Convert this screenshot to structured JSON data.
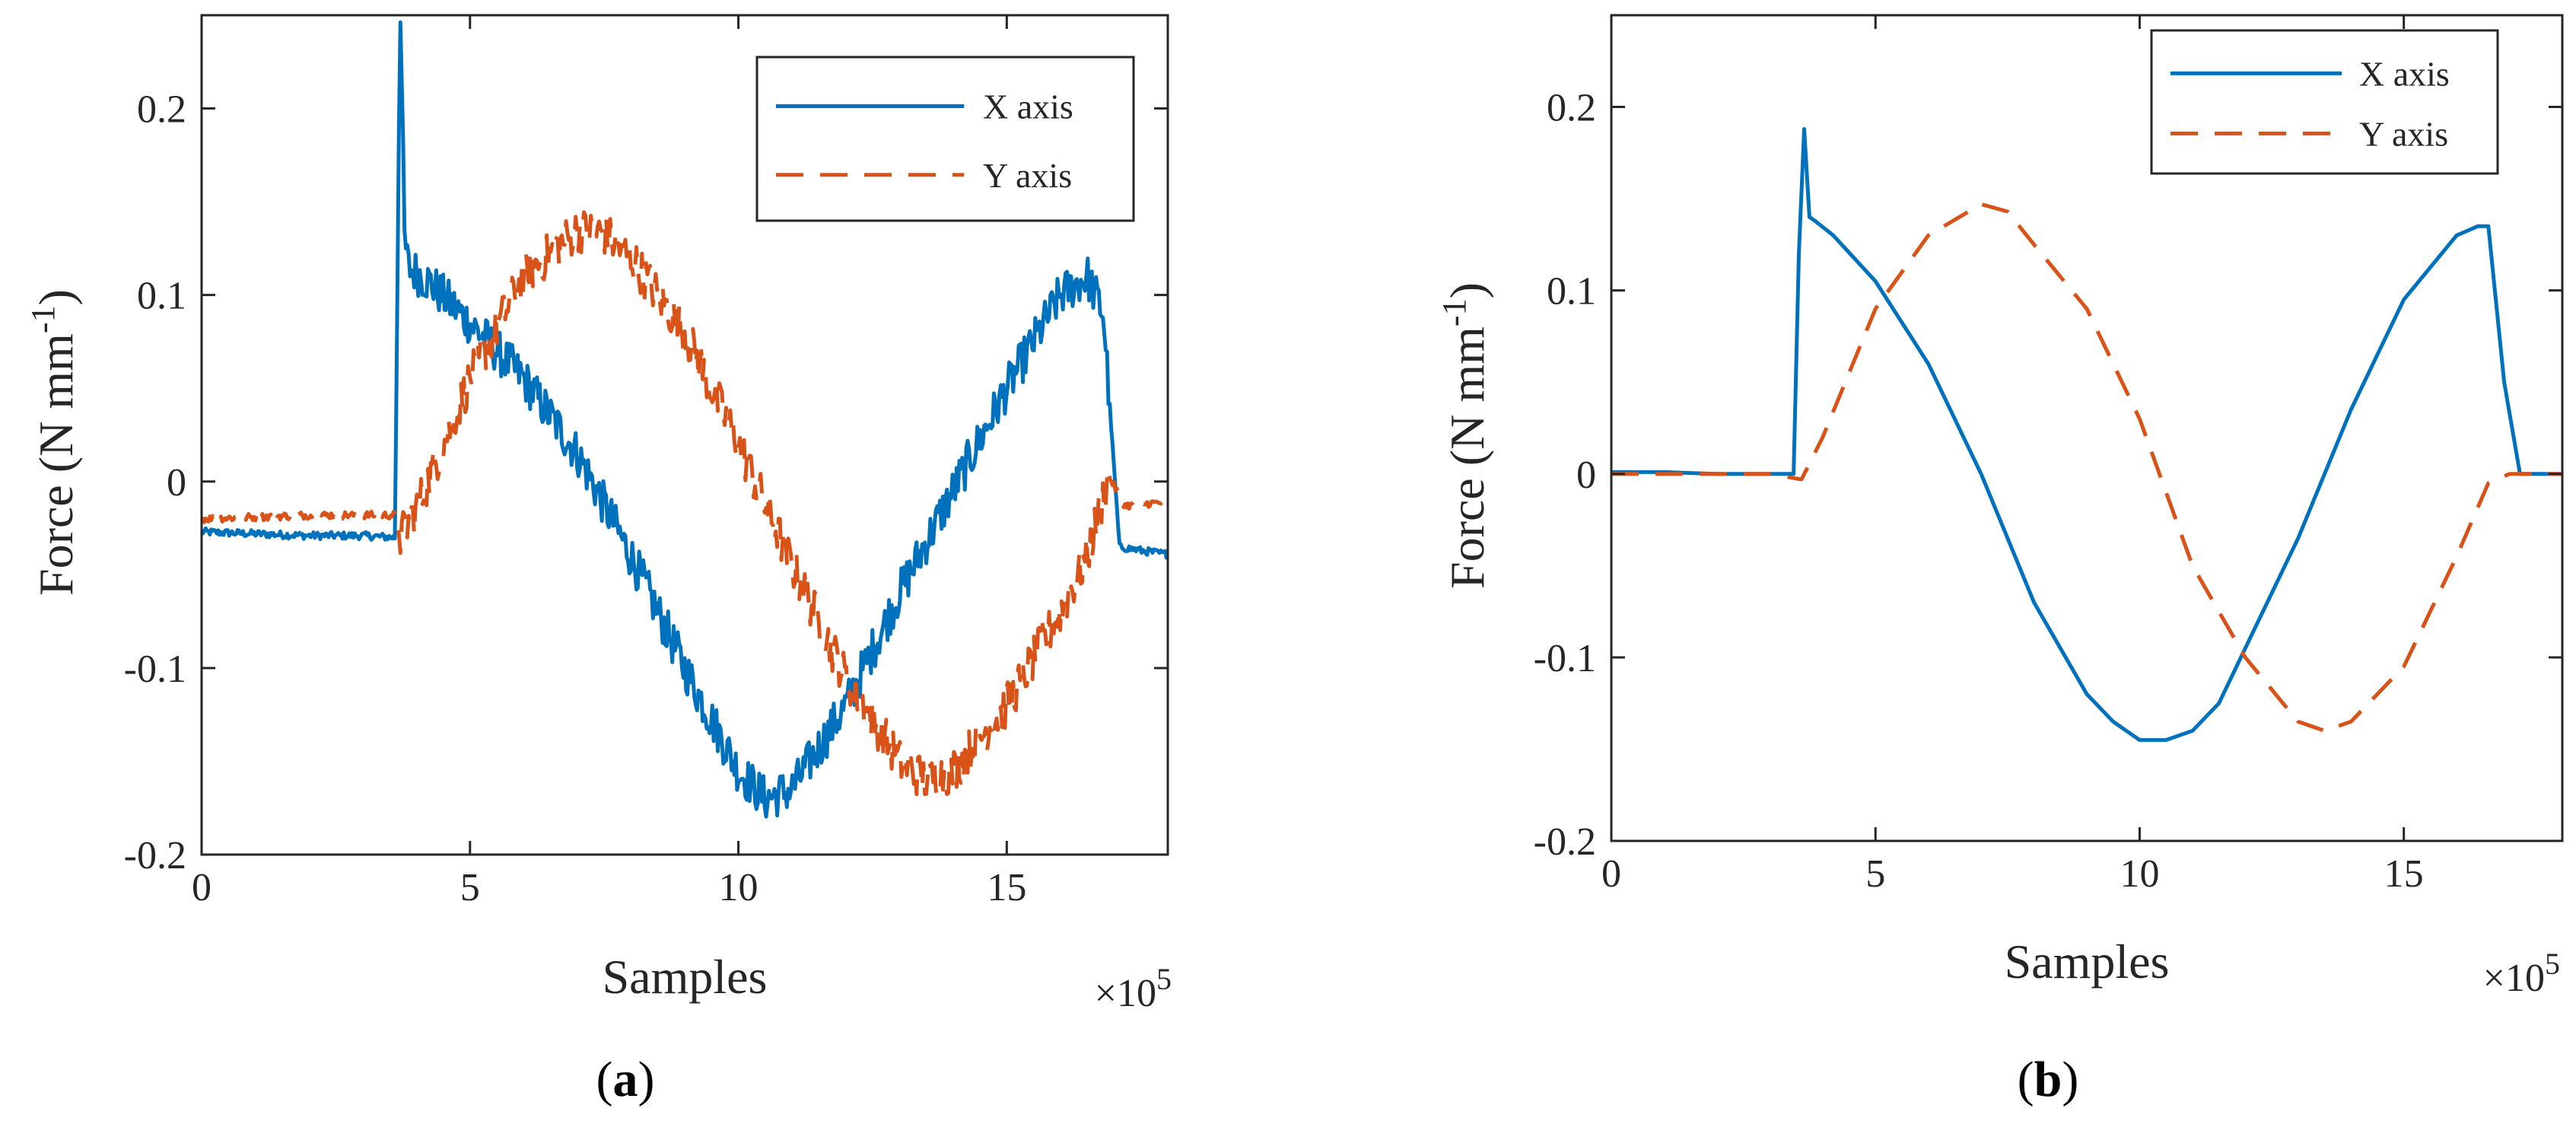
{
  "figure": {
    "panel_a_label": "a",
    "panel_b_label": "b"
  },
  "chart_data": [
    {
      "type": "line",
      "panel": "a",
      "xlabel": "Samples",
      "ylabel": "Force (N mm",
      "ylabel_sup": "-1",
      "ylabel_close": ")",
      "x_multiplier_text": "×10",
      "x_multiplier_exp": "5",
      "xlim": [
        0,
        18
      ],
      "ylim": [
        -0.2,
        0.25
      ],
      "xticks": [
        0,
        5,
        10,
        15
      ],
      "xtick_labels": [
        "0",
        "5",
        "10",
        "15"
      ],
      "yticks": [
        -0.2,
        -0.1,
        0,
        0.1,
        0.2
      ],
      "ytick_labels": [
        "-0.2",
        "-0.1",
        "0",
        "0.1",
        "0.2"
      ],
      "grid": false,
      "legend_position": "top-right",
      "noisy": true,
      "series": [
        {
          "name": "X axis",
          "color": "#0072BD",
          "style": "solid",
          "x": [
            0,
            1,
            2,
            3,
            3.6,
            3.62,
            3.7,
            3.78,
            3.85,
            4.2,
            5,
            6,
            7,
            8,
            9,
            10,
            10.5,
            11,
            12,
            13,
            14,
            15,
            16,
            16.5,
            16.8,
            17.1,
            17.5,
            18
          ],
          "y": [
            -0.027,
            -0.028,
            -0.029,
            -0.029,
            -0.03,
            0.02,
            0.26,
            0.13,
            0.115,
            0.108,
            0.085,
            0.055,
            0.015,
            -0.04,
            -0.1,
            -0.155,
            -0.17,
            -0.165,
            -0.12,
            -0.06,
            -0.005,
            0.05,
            0.1,
            0.11,
            0.09,
            -0.035,
            -0.037,
            -0.039
          ]
        },
        {
          "name": "Y axis",
          "color": "#D95319",
          "style": "dashed",
          "x": [
            0,
            1,
            2,
            3,
            3.6,
            3.7,
            4,
            5,
            6,
            7,
            7.5,
            8,
            9,
            10,
            11,
            12,
            13,
            13.5,
            14,
            15,
            16,
            16.5,
            16.9,
            17.2,
            17.5,
            18
          ],
          "y": [
            -0.02,
            -0.019,
            -0.018,
            -0.018,
            -0.018,
            -0.03,
            -0.015,
            0.055,
            0.11,
            0.135,
            0.133,
            0.12,
            0.08,
            0.02,
            -0.045,
            -0.105,
            -0.15,
            -0.16,
            -0.155,
            -0.12,
            -0.07,
            -0.04,
            0.003,
            -0.013,
            -0.012,
            -0.011
          ]
        }
      ]
    },
    {
      "type": "line",
      "panel": "b",
      "xlabel": "Samples",
      "ylabel": "Force (N mm",
      "ylabel_sup": "-1",
      "ylabel_close": ")",
      "x_multiplier_text": "×10",
      "x_multiplier_exp": "5",
      "xlim": [
        0,
        18
      ],
      "ylim": [
        -0.2,
        0.25
      ],
      "xticks": [
        0,
        5,
        10,
        15
      ],
      "xtick_labels": [
        "0",
        "5",
        "10",
        "15"
      ],
      "yticks": [
        -0.2,
        -0.1,
        0,
        0.1,
        0.2
      ],
      "ytick_labels": [
        "-0.2",
        "-0.1",
        "0",
        "0.1",
        "0.2"
      ],
      "grid": false,
      "legend_position": "top-right",
      "noisy": false,
      "series": [
        {
          "name": "X axis",
          "color": "#0072BD",
          "style": "solid",
          "x": [
            0,
            1,
            2,
            3,
            3.45,
            3.55,
            3.65,
            3.75,
            3.85,
            4.2,
            5,
            6,
            7,
            8,
            9,
            9.5,
            10,
            10.5,
            11,
            11.5,
            12,
            13,
            14,
            15,
            16,
            16.4,
            16.6,
            16.9,
            17.2,
            18
          ],
          "y": [
            0.001,
            0.001,
            0,
            0,
            0,
            0.12,
            0.188,
            0.14,
            0.138,
            0.13,
            0.105,
            0.06,
            0.0,
            -0.07,
            -0.12,
            -0.135,
            -0.145,
            -0.145,
            -0.14,
            -0.125,
            -0.095,
            -0.035,
            0.035,
            0.095,
            0.13,
            0.135,
            0.135,
            0.05,
            0.0,
            0.0
          ]
        },
        {
          "name": "Y axis",
          "color": "#D95319",
          "style": "dashed",
          "x": [
            0,
            1,
            2,
            3,
            3.6,
            4,
            5,
            6,
            7,
            7.5,
            8,
            9,
            10,
            11,
            12,
            13,
            13.5,
            14,
            15,
            16,
            16.6,
            17,
            18
          ],
          "y": [
            0,
            0,
            0,
            0,
            -0.003,
            0.02,
            0.09,
            0.13,
            0.147,
            0.143,
            0.125,
            0.09,
            0.03,
            -0.05,
            -0.1,
            -0.135,
            -0.14,
            -0.135,
            -0.105,
            -0.045,
            -0.005,
            0.0,
            0.0
          ]
        }
      ]
    }
  ]
}
